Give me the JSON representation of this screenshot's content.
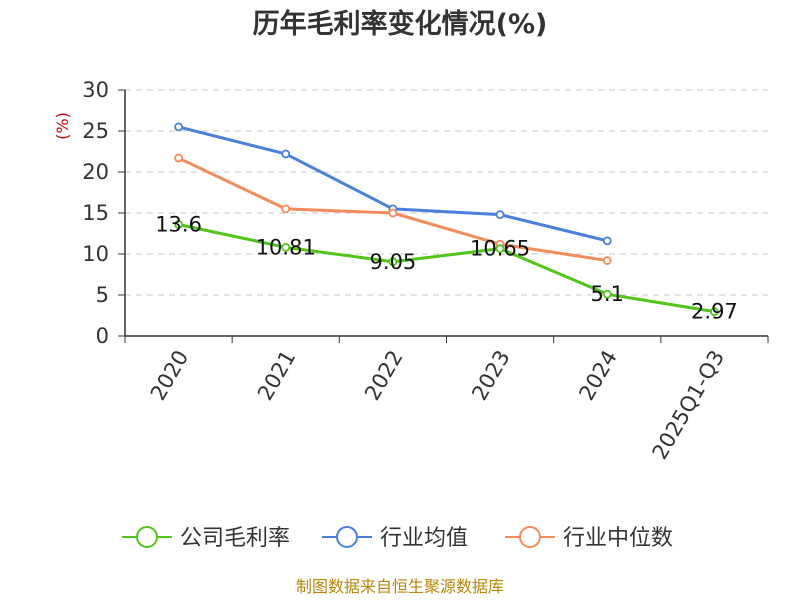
{
  "chart_data": {
    "type": "line",
    "title": "历年毛利率变化情况(%)",
    "ylabel": "(%)",
    "xlabel": "",
    "ylim": [
      0,
      30
    ],
    "yticks": [
      0,
      5,
      10,
      15,
      20,
      25,
      30
    ],
    "grid": true,
    "legend_position": "bottom",
    "categories": [
      "2020",
      "2021",
      "2022",
      "2023",
      "2024",
      "2025Q1-Q3"
    ],
    "series": [
      {
        "name": "公司毛利率",
        "color": "#52c41a",
        "values": [
          13.6,
          10.81,
          9.05,
          10.65,
          5.1,
          2.97
        ],
        "labels": [
          "13.6",
          "10.81",
          "9.05",
          "10.65",
          "5.1",
          "2.97"
        ]
      },
      {
        "name": "行业均值",
        "color": "#4a7fdb",
        "values": [
          25.5,
          22.2,
          15.5,
          14.8,
          11.6,
          null
        ]
      },
      {
        "name": "行业中位数",
        "color": "#f28c5a",
        "values": [
          21.7,
          15.5,
          15.0,
          11.2,
          9.2,
          null
        ]
      }
    ]
  },
  "source": "制图数据来自恒生聚源数据库"
}
